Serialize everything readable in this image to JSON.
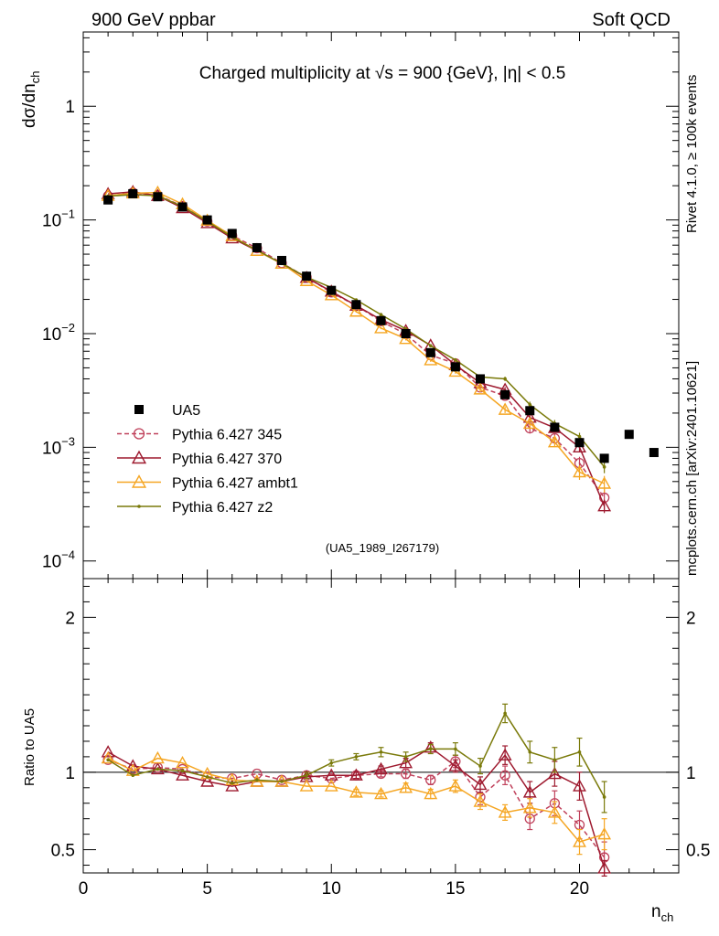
{
  "header": {
    "left": "900 GeV ppbar",
    "right": "Soft QCD"
  },
  "side_labels": {
    "rivet": "Rivet 4.1.0, ≥ 100k events",
    "mcplots": "mcplots.cern.ch [arXiv:2401.10621]"
  },
  "chart_data": {
    "type": "line",
    "title": "Charged multiplicity at √s = 900 {GeV}, |η| < 0.5",
    "analysis_id": "(UA5_1989_I267179)",
    "xlabel": "n_ch",
    "ylabel": "dσ/dn_ch",
    "ratio_ylabel": "Ratio to UA5",
    "xlim": [
      0,
      24
    ],
    "ylim": [
      7e-05,
      4.5
    ],
    "ylim_ratio": [
      0.35,
      2.25
    ],
    "y_scale": "log",
    "x_ticks": [
      0,
      5,
      10,
      15,
      20
    ],
    "y_ticks": [
      {
        "value": 0.0001,
        "base": "10",
        "exp": "−4"
      },
      {
        "value": 0.001,
        "base": "10",
        "exp": "−3"
      },
      {
        "value": 0.01,
        "base": "10",
        "exp": "−2"
      },
      {
        "value": 0.1,
        "base": "10",
        "exp": "−1"
      },
      {
        "value": 1,
        "base": "1",
        "exp": ""
      }
    ],
    "ratio_ticks": [
      {
        "value": 0.5,
        "label": "0.5"
      },
      {
        "value": 1,
        "label": "1"
      },
      {
        "value": 2,
        "label": "2"
      }
    ],
    "legend": [
      "UA5",
      "Pythia 6.427 345",
      "Pythia 6.427 370",
      "Pythia 6.427 ambt1",
      "Pythia 6.427 z2"
    ],
    "data": {
      "name": "UA5",
      "x": [
        1,
        2,
        3,
        4,
        5,
        6,
        7,
        8,
        9,
        10,
        11,
        12,
        13,
        14,
        15,
        16,
        17,
        18,
        19,
        20,
        21,
        22,
        23
      ],
      "y": [
        0.15,
        0.17,
        0.16,
        0.13,
        0.1,
        0.076,
        0.057,
        0.044,
        0.032,
        0.024,
        0.018,
        0.013,
        0.01,
        0.0068,
        0.0051,
        0.004,
        0.0029,
        0.0021,
        0.0015,
        0.0011,
        0.0008,
        0.0013,
        0.0009
      ]
    },
    "series": [
      {
        "name": "Pythia 6.427 345",
        "color": "#c0415b",
        "marker": "circle",
        "dash": true,
        "ratio": [
          1.08,
          1.02,
          1.03,
          1.02,
          0.97,
          0.96,
          0.99,
          0.95,
          0.98,
          0.96,
          0.98,
          0.99,
          0.99,
          0.95,
          1.07,
          0.84,
          0.98,
          0.7,
          0.8,
          0.66,
          0.45
        ],
        "ratio_err": [
          0,
          0,
          0,
          0,
          0,
          0,
          0,
          0,
          0,
          0,
          0.02,
          0.02,
          0.03,
          0.03,
          0.04,
          0.05,
          0.06,
          0.07,
          0.08,
          0.09,
          0.1
        ]
      },
      {
        "name": "Pythia 6.427 370",
        "color": "#9e1a2f",
        "marker": "triangle",
        "dash": false,
        "ratio": [
          1.13,
          1.04,
          1.02,
          0.98,
          0.94,
          0.91,
          0.94,
          0.94,
          0.97,
          0.98,
          0.98,
          1.02,
          1.06,
          1.16,
          1.04,
          0.92,
          1.11,
          0.87,
          0.99,
          0.91,
          0.38
        ],
        "ratio_err": [
          0,
          0,
          0,
          0,
          0,
          0,
          0,
          0,
          0,
          0,
          0.02,
          0.02,
          0.03,
          0.03,
          0.04,
          0.05,
          0.06,
          0.07,
          0.08,
          0.09,
          0.05
        ]
      },
      {
        "name": "Pythia 6.427 ambt1",
        "color": "#f5a623",
        "marker": "triangle",
        "dash": false,
        "ratio": [
          1.09,
          1.01,
          1.09,
          1.06,
          0.99,
          0.95,
          0.94,
          0.94,
          0.91,
          0.91,
          0.87,
          0.86,
          0.9,
          0.86,
          0.91,
          0.81,
          0.74,
          0.77,
          0.74,
          0.55,
          0.6
        ],
        "ratio_err": [
          0,
          0,
          0,
          0,
          0,
          0,
          0,
          0,
          0,
          0,
          0.02,
          0.02,
          0.03,
          0.03,
          0.04,
          0.05,
          0.05,
          0.06,
          0.07,
          0.08,
          0.1
        ]
      },
      {
        "name": "Pythia 6.427 z2",
        "color": "#7a7a0a",
        "marker": "dot",
        "dash": false,
        "ratio": [
          1.08,
          0.98,
          1.02,
          1.01,
          0.97,
          0.93,
          0.95,
          0.94,
          0.98,
          1.06,
          1.1,
          1.13,
          1.1,
          1.15,
          1.15,
          1.04,
          1.38,
          1.13,
          1.08,
          1.13,
          0.84
        ],
        "ratio_err": [
          0,
          0,
          0,
          0,
          0,
          0,
          0,
          0,
          0.02,
          0.02,
          0.02,
          0.03,
          0.03,
          0.03,
          0.04,
          0.05,
          0.06,
          0.07,
          0.08,
          0.09,
          0.1
        ]
      }
    ]
  }
}
